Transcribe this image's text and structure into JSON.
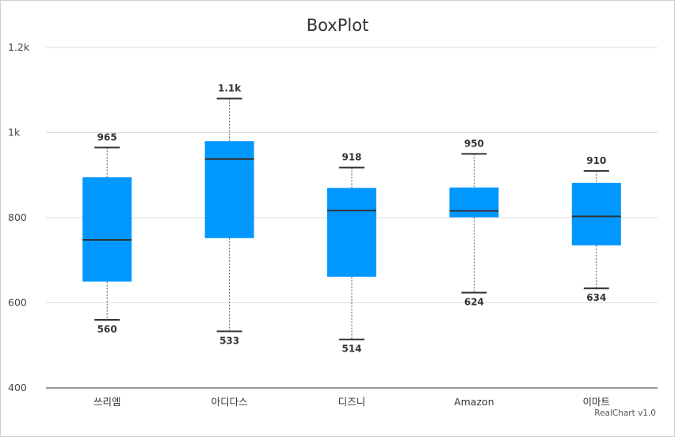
{
  "chart_data": {
    "type": "boxplot",
    "title": "BoxPlot",
    "credits": "RealChart v1.0",
    "ylim": [
      400,
      1200
    ],
    "y_ticks": [
      {
        "value": 400,
        "label": "400"
      },
      {
        "value": 600,
        "label": "600"
      },
      {
        "value": 800,
        "label": "800"
      },
      {
        "value": 1000,
        "label": "1k"
      },
      {
        "value": 1200,
        "label": "1.2k"
      }
    ],
    "grid": true,
    "color": "#0098ff",
    "categories": [
      "쓰리엠",
      "아디다스",
      "디즈니",
      "Amazon",
      "이마트"
    ],
    "boxes": [
      {
        "min": 560,
        "q1": 650,
        "median": 748,
        "q3": 895,
        "max": 965,
        "min_label": "560",
        "max_label": "965"
      },
      {
        "min": 533,
        "q1": 752,
        "median": 938,
        "q3": 980,
        "max": 1080,
        "min_label": "533",
        "max_label": "1.1k"
      },
      {
        "min": 514,
        "q1": 661,
        "median": 817,
        "q3": 870,
        "max": 918,
        "min_label": "514",
        "max_label": "918"
      },
      {
        "min": 624,
        "q1": 801,
        "median": 816,
        "q3": 871,
        "max": 950,
        "min_label": "624",
        "max_label": "950"
      },
      {
        "min": 634,
        "q1": 735,
        "median": 803,
        "q3": 882,
        "max": 910,
        "min_label": "634",
        "max_label": "910"
      }
    ]
  }
}
